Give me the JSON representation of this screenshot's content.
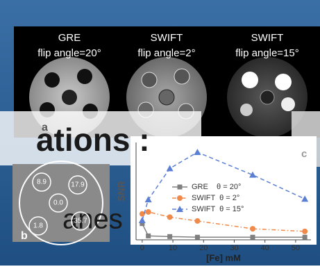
{
  "images": [
    {
      "title": "GRE",
      "subtitle": "flip angle=20°"
    },
    {
      "title": "SWIFT",
      "subtitle": "flip angle=2°"
    },
    {
      "title": "SWIFT",
      "subtitle": "flip angle=15°"
    }
  ],
  "overlay_text": {
    "heading": "ations :",
    "body": "anes"
  },
  "panel_labels": [
    "a",
    "b",
    "c"
  ],
  "phantom": {
    "values": [
      "8.9",
      "17.9",
      "0.0",
      "1.8",
      "35.7"
    ]
  },
  "chart_data": {
    "type": "line",
    "y_label": "SNR",
    "x_label": "[Fe] mM",
    "xlim": [
      -2,
      55
    ],
    "xticks": [
      0,
      10,
      20,
      30,
      40,
      50
    ],
    "ylim": [
      0,
      150
    ],
    "x": [
      0,
      2,
      9,
      18,
      36,
      53
    ],
    "series": [
      {
        "name": "GRE    θ = 20°",
        "color": "#808080",
        "marker": "square",
        "linestyle": "solid",
        "values": [
          25,
          6,
          5,
          4,
          4,
          4
        ]
      },
      {
        "name": "SWIFT  θ = 2°",
        "color": "#f08a4b",
        "marker": "circle",
        "linestyle": "dashdot",
        "values": [
          40,
          43,
          35,
          29,
          17,
          13
        ]
      },
      {
        "name": "SWIFT  θ = 15°",
        "color": "#5b7fd3",
        "marker": "triangle",
        "linestyle": "dashed",
        "values": [
          30,
          62,
          110,
          135,
          100,
          63
        ]
      }
    ]
  }
}
